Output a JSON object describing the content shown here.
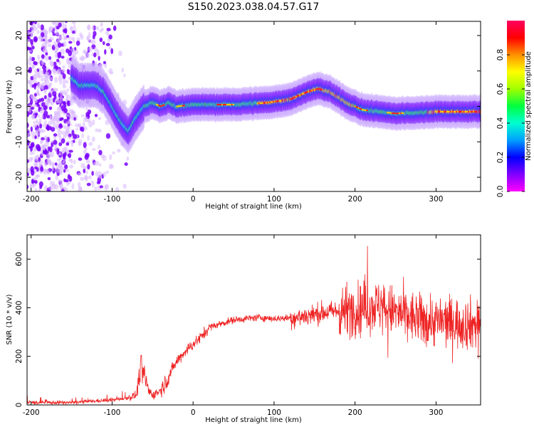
{
  "figure": {
    "title": "S150.2023.038.04.57.G17"
  },
  "colorbar": {
    "label": "Normalized spectral amplitude",
    "ticks": [
      "0.0",
      "0.2",
      "0.4",
      "0.6",
      "0.8"
    ],
    "tick_values": [
      0.0,
      0.2,
      0.4,
      0.6,
      0.8
    ],
    "range": [
      0,
      1
    ],
    "colormap": "gist_rainbow_r"
  },
  "chart_data": [
    {
      "type": "heatmap",
      "xlabel": "Height of straight line (km)",
      "ylabel": "Frequency (Hz)",
      "xlim": [
        -205,
        355
      ],
      "ylim": [
        -24,
        24
      ],
      "x_ticks": [
        -200,
        -100,
        0,
        100,
        200,
        300
      ],
      "y_ticks": [
        -20,
        -10,
        0,
        10,
        20
      ],
      "ridge": {
        "x": [
          -150,
          -140,
          -130,
          -120,
          -110,
          -100,
          -90,
          -80,
          -70,
          -60,
          -50,
          -40,
          -30,
          -20,
          0,
          50,
          90,
          120,
          140,
          155,
          170,
          190,
          210,
          230,
          250,
          300,
          355
        ],
        "freq": [
          8,
          6,
          6,
          6,
          4,
          0,
          -4,
          -7,
          -3,
          0,
          1,
          0,
          1,
          0,
          0.5,
          0.5,
          1,
          2,
          4,
          5,
          4,
          1,
          -1,
          -1.5,
          -2,
          -1.5,
          -1.5
        ]
      }
    },
    {
      "type": "line",
      "xlabel": "Height of straight line (km)",
      "ylabel": "SNR (10 * v/v)",
      "xlim": [
        -205,
        355
      ],
      "ylim": [
        0,
        700
      ],
      "x_ticks": [
        -200,
        -100,
        0,
        100,
        200,
        300
      ],
      "y_ticks": [
        0,
        200,
        400,
        600
      ],
      "color": "#ee2222",
      "series": [
        {
          "x": [
            -205,
            -150,
            -100,
            -80,
            -70,
            -65,
            -60,
            -55,
            -50,
            -40,
            -30,
            -20,
            -10,
            0,
            10,
            20,
            30,
            50,
            80,
            100,
            130,
            160,
            190,
            210,
            230,
            250,
            280,
            320,
            355
          ],
          "values": [
            10,
            10,
            20,
            30,
            40,
            150,
            120,
            60,
            40,
            60,
            120,
            180,
            220,
            250,
            280,
            320,
            330,
            350,
            360,
            355,
            360,
            380,
            390,
            400,
            410,
            380,
            350,
            340,
            330
          ]
        }
      ]
    }
  ]
}
